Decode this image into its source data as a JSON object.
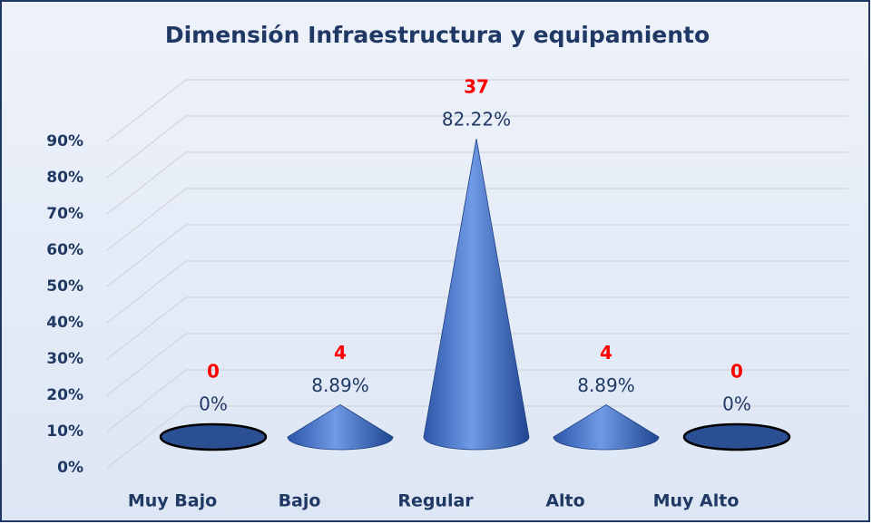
{
  "chart_data": {
    "type": "cone",
    "title": "Dimensión Infraestructura y equipamiento",
    "categories": [
      "Muy Bajo",
      "Bajo",
      "Regular",
      "Alto",
      "Muy Alto"
    ],
    "values": [
      0,
      8.89,
      82.22,
      8.89,
      0
    ],
    "value_labels": [
      "0%",
      "8.89%",
      "82.22%",
      "8.89%",
      "0%"
    ],
    "counts": [
      0,
      4,
      37,
      4,
      0
    ],
    "color": "#3f6fc8",
    "ylim": [
      0,
      100
    ],
    "yticks": [
      {
        "value": 0,
        "label": "0%"
      },
      {
        "value": 10,
        "label": "10%"
      },
      {
        "value": 20,
        "label": "20%"
      },
      {
        "value": 30,
        "label": "30%"
      },
      {
        "value": 40,
        "label": "40%"
      },
      {
        "value": 50,
        "label": "50%"
      },
      {
        "value": 60,
        "label": "60%"
      },
      {
        "value": 70,
        "label": "70%"
      },
      {
        "value": 80,
        "label": "80%"
      },
      {
        "value": 90,
        "label": "90%"
      }
    ],
    "grid": true
  }
}
